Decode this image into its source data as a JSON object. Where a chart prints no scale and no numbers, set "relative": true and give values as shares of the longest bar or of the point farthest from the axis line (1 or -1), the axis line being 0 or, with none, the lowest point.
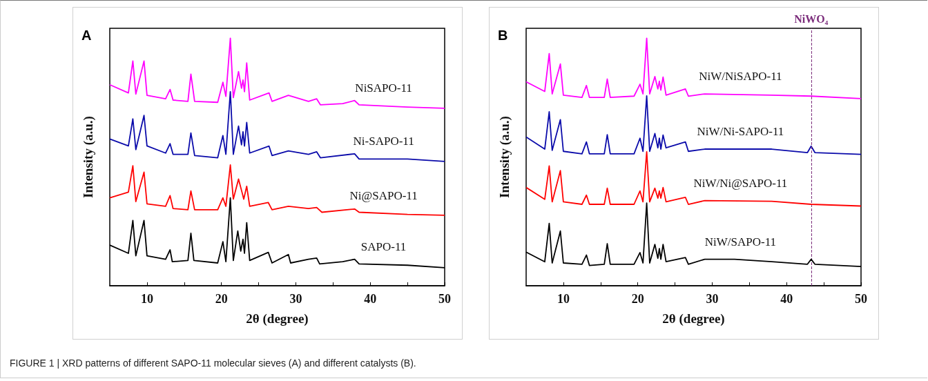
{
  "chart_data": [
    {
      "type": "line",
      "relative": true,
      "xlabel": "2θ (degree)",
      "ylabel": "Intensity (a.u.)",
      "xlim": [
        5,
        50
      ],
      "xticks": [
        10,
        {
          "value": 15,
          "label": null
        },
        20,
        {
          "value": 25,
          "label": null
        },
        30,
        {
          "value": 35,
          "label": null
        },
        40,
        {
          "value": 45,
          "label": null
        },
        50
      ],
      "tick_labels": "x",
      "legend": false,
      "grid": false,
      "marker": "none",
      "line_style": "solid",
      "annotations": [
        "A",
        "FIGURE 1 | XRD patterns of different SAPO-11 molecular sieves (A) and different catalysts (B)."
      ],
      "series": [
        {
          "name": "NiSAPO-11",
          "color": "#ff00ff",
          "x": [
            5,
            7.5,
            8.1,
            8.5,
            9.6,
            10,
            12.5,
            13.1,
            13.5,
            15.5,
            15.9,
            16.4,
            19.5,
            20.2,
            20.6,
            21.2,
            21.6,
            22.3,
            22.7,
            22.9,
            23.1,
            23.4,
            23.8,
            26.4,
            26.8,
            29.0,
            31.7,
            32.8,
            33.3,
            36.3,
            37.9,
            38.5,
            45,
            50
          ],
          "values": [
            0.812,
            0.779,
            0.908,
            0.774,
            0.908,
            0.769,
            0.755,
            0.793,
            0.75,
            0.745,
            0.855,
            0.745,
            0.741,
            0.822,
            0.765,
            1,
            0.76,
            0.865,
            0.798,
            0.831,
            0.784,
            0.9,
            0.75,
            0.779,
            0.745,
            0.769,
            0.745,
            0.755,
            0.731,
            0.736,
            0.748,
            0.731,
            0.722,
            0.717
          ]
        },
        {
          "name": "Ni-SAPO-11",
          "color": "#0a0aaa",
          "x": [
            5,
            7.5,
            8.1,
            8.5,
            9.6,
            10,
            12.5,
            13.1,
            13.5,
            15.5,
            15.9,
            16.4,
            19.5,
            20.2,
            20.6,
            21.2,
            21.6,
            22.3,
            22.7,
            22.9,
            23.1,
            23.4,
            23.8,
            26.4,
            26.8,
            29.0,
            31.7,
            32.8,
            33.3,
            37.9,
            38.5,
            45,
            50
          ],
          "values": [
            0.593,
            0.565,
            0.674,
            0.55,
            0.688,
            0.565,
            0.536,
            0.574,
            0.531,
            0.531,
            0.617,
            0.526,
            0.517,
            0.607,
            0.531,
            0.784,
            0.531,
            0.645,
            0.569,
            0.622,
            0.564,
            0.66,
            0.536,
            0.564,
            0.526,
            0.545,
            0.531,
            0.541,
            0.517,
            0.533,
            0.512,
            0.512,
            0.502
          ]
        },
        {
          "name": "Ni@SAPO-11",
          "color": "#ff0000",
          "x": [
            5,
            7.5,
            8.1,
            8.5,
            9.6,
            10,
            12.5,
            13.1,
            13.5,
            15.5,
            15.9,
            16.4,
            19.5,
            20.2,
            20.6,
            21.2,
            21.6,
            22.3,
            22.8,
            23.0,
            23.4,
            23.8,
            26.3,
            26.8,
            29.0,
            31.7,
            32.8,
            33.5,
            37.9,
            38.5,
            45,
            50
          ],
          "values": [
            0.355,
            0.378,
            0.485,
            0.34,
            0.459,
            0.331,
            0.321,
            0.364,
            0.312,
            0.307,
            0.383,
            0.307,
            0.307,
            0.355,
            0.321,
            0.488,
            0.35,
            0.431,
            0.374,
            0.35,
            0.402,
            0.321,
            0.336,
            0.307,
            0.321,
            0.312,
            0.316,
            0.297,
            0.31,
            0.297,
            0.288,
            0.285
          ]
        },
        {
          "name": "SAPO-11",
          "color": "#000000",
          "x": [
            5,
            7.5,
            8.1,
            8.5,
            9.6,
            10,
            12.5,
            13.1,
            13.4,
            15.5,
            15.9,
            16.3,
            19.5,
            20.2,
            20.6,
            21.2,
            21.6,
            22.2,
            22.6,
            22.9,
            23.1,
            23.4,
            23.8,
            26.3,
            26.8,
            29.0,
            29.3,
            31.7,
            32.8,
            33.2,
            36.3,
            37.9,
            38.5,
            45,
            50
          ],
          "values": [
            0.164,
            0.131,
            0.264,
            0.121,
            0.264,
            0.121,
            0.107,
            0.145,
            0.097,
            0.102,
            0.212,
            0.102,
            0.092,
            0.178,
            0.097,
            0.355,
            0.102,
            0.221,
            0.14,
            0.188,
            0.131,
            0.255,
            0.102,
            0.135,
            0.092,
            0.126,
            0.092,
            0.107,
            0.112,
            0.088,
            0.097,
            0.107,
            0.088,
            0.083,
            0.073
          ]
        }
      ]
    },
    {
      "type": "line",
      "relative": true,
      "xlabel": "2θ (degree)",
      "ylabel": "Intensity (a.u.)",
      "xlim": [
        5,
        50
      ],
      "xticks": [
        10,
        {
          "value": 15,
          "label": null
        },
        20,
        {
          "value": 25,
          "label": null
        },
        30,
        {
          "value": 35,
          "label": null
        },
        40,
        {
          "value": 45,
          "label": null
        },
        50
      ],
      "tick_labels": "x",
      "legend": false,
      "grid": false,
      "marker": "none",
      "line_style": "solid",
      "annotations": [
        "B"
      ],
      "ref_lines": [
        {
          "axis": "x",
          "value": 43.3,
          "label": "NiWO₄",
          "color": "#7b2d7b",
          "line_style": "dashed"
        }
      ],
      "series": [
        {
          "name": "NiW/NiSAPO-11",
          "color": "#ff00ff",
          "x": [
            5,
            7.5,
            8.1,
            8.5,
            9.6,
            10,
            12.5,
            13.1,
            13.5,
            15.5,
            15.9,
            16.3,
            19.5,
            20.3,
            20.7,
            21.2,
            21.6,
            22.3,
            22.7,
            22.9,
            23.1,
            23.4,
            23.8,
            26.4,
            26.8,
            29.0,
            38,
            43.3,
            50
          ],
          "values": [
            0.824,
            0.785,
            0.938,
            0.775,
            0.896,
            0.77,
            0.761,
            0.809,
            0.761,
            0.761,
            0.835,
            0.761,
            0.766,
            0.814,
            0.775,
            1,
            0.775,
            0.845,
            0.795,
            0.826,
            0.79,
            0.843,
            0.77,
            0.795,
            0.766,
            0.775,
            0.77,
            0.766,
            0.756
          ]
        },
        {
          "name": "NiW/Ni-SAPO-11",
          "color": "#0a0aaa",
          "x": [
            5,
            7.5,
            8.1,
            8.5,
            9.6,
            10,
            12.5,
            13.1,
            13.5,
            15.5,
            15.9,
            16.3,
            19.5,
            20.3,
            20.7,
            21.2,
            21.6,
            22.3,
            22.7,
            22.9,
            23.1,
            23.4,
            23.8,
            26.4,
            26.8,
            29.0,
            38,
            42.8,
            43.3,
            43.8,
            50
          ],
          "values": [
            0.601,
            0.552,
            0.703,
            0.547,
            0.671,
            0.543,
            0.533,
            0.581,
            0.533,
            0.533,
            0.61,
            0.533,
            0.533,
            0.596,
            0.543,
            0.767,
            0.543,
            0.615,
            0.557,
            0.596,
            0.552,
            0.609,
            0.557,
            0.581,
            0.543,
            0.552,
            0.552,
            0.538,
            0.564,
            0.538,
            0.531
          ]
        },
        {
          "name": "NiW/Ni@SAPO-11",
          "color": "#ff0000",
          "x": [
            5,
            7.5,
            8.1,
            8.5,
            9.6,
            10,
            12.5,
            13.1,
            13.5,
            15.5,
            15.9,
            16.3,
            19.5,
            20.3,
            20.7,
            21.2,
            21.6,
            22.3,
            22.7,
            22.9,
            23.1,
            23.4,
            23.8,
            26.4,
            26.8,
            29.0,
            38,
            43.3,
            50
          ],
          "values": [
            0.397,
            0.349,
            0.484,
            0.339,
            0.465,
            0.339,
            0.329,
            0.366,
            0.329,
            0.329,
            0.394,
            0.329,
            0.329,
            0.383,
            0.339,
            0.541,
            0.339,
            0.394,
            0.354,
            0.383,
            0.354,
            0.397,
            0.339,
            0.357,
            0.329,
            0.344,
            0.341,
            0.329,
            0.322
          ]
        },
        {
          "name": "NiW/SAPO-11",
          "color": "#000000",
          "x": [
            5,
            7.5,
            8.1,
            8.5,
            9.6,
            10,
            12.5,
            13.1,
            13.5,
            15.5,
            15.9,
            16.3,
            19.5,
            20.3,
            20.7,
            21.2,
            21.6,
            22.3,
            22.7,
            22.9,
            23.1,
            23.4,
            23.8,
            26.4,
            26.8,
            29.0,
            33,
            38,
            42.8,
            43.3,
            43.8,
            50
          ],
          "values": [
            0.136,
            0.097,
            0.252,
            0.092,
            0.221,
            0.092,
            0.087,
            0.124,
            0.082,
            0.087,
            0.17,
            0.087,
            0.087,
            0.134,
            0.092,
            0.334,
            0.092,
            0.167,
            0.111,
            0.15,
            0.107,
            0.167,
            0.097,
            0.114,
            0.087,
            0.107,
            0.107,
            0.097,
            0.087,
            0.107,
            0.087,
            0.078
          ]
        }
      ]
    }
  ]
}
